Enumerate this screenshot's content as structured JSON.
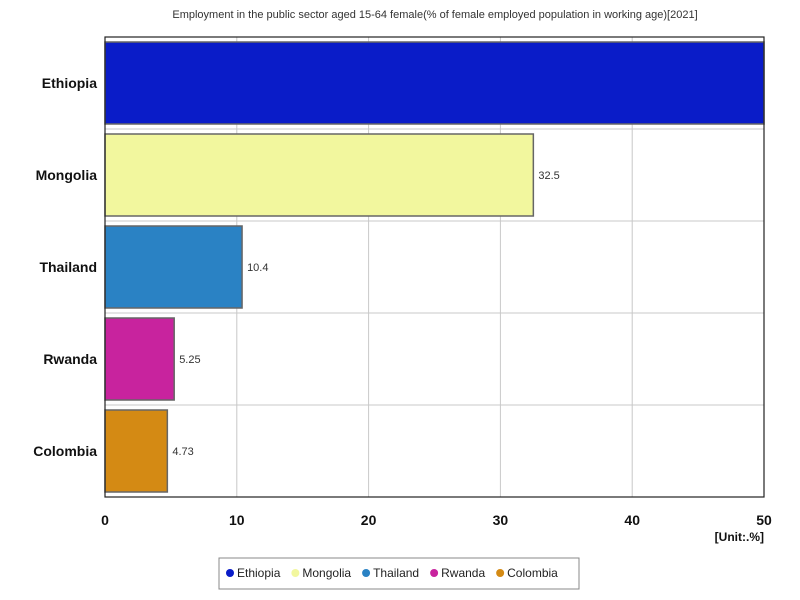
{
  "chart_data": {
    "type": "bar",
    "orientation": "horizontal",
    "title": "Employment in the public sector aged 15-64 female(% of female employed population in working age)[2021]",
    "unit": "[Unit:.%]",
    "categories": [
      "Ethiopia",
      "Mongolia",
      "Thailand",
      "Rwanda",
      "Colombia"
    ],
    "values": [
      50,
      32.5,
      10.4,
      5.25,
      4.73
    ],
    "value_labels": [
      "",
      "32.5",
      "10.4",
      "5.25",
      "4.73"
    ],
    "colors": [
      "#0a1cc8",
      "#f2f79e",
      "#2a82c4",
      "#c8239e",
      "#d48a14"
    ],
    "xlim": [
      0,
      50
    ],
    "x_ticks": [
      "0",
      "10",
      "20",
      "30",
      "40",
      "50"
    ],
    "grid": true,
    "legend_position": "bottom"
  }
}
